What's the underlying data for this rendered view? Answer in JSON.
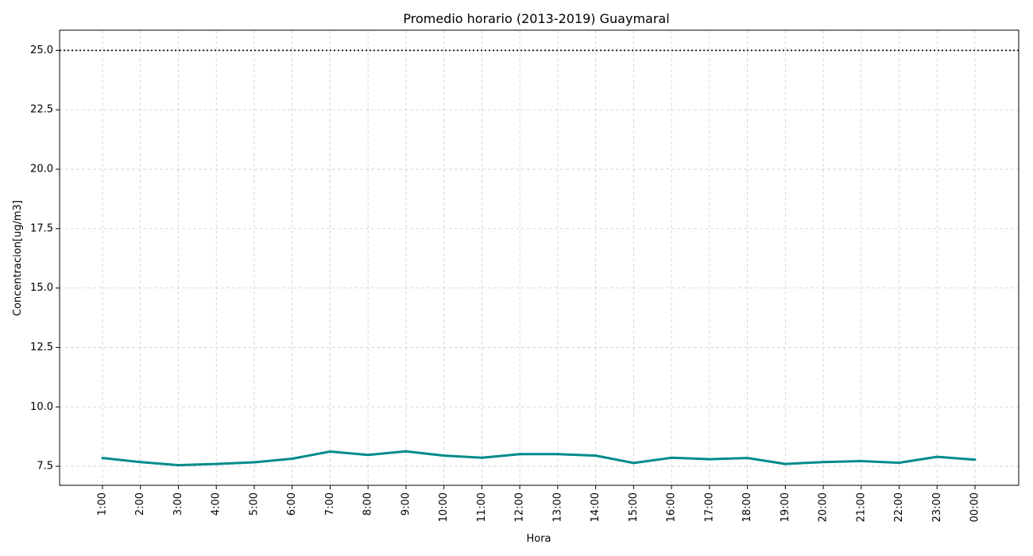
{
  "chart_data": {
    "type": "line",
    "title": "Promedio horario (2013-2019) Guaymaral",
    "xlabel": "Hora",
    "ylabel": "Concentracion[ug/m3]",
    "categories": [
      "1:00",
      "2:00",
      "3:00",
      "4:00",
      "5:00",
      "6:00",
      "7:00",
      "8:00",
      "9:00",
      "10:00",
      "11:00",
      "12:00",
      "13:00",
      "14:00",
      "15:00",
      "16:00",
      "17:00",
      "18:00",
      "19:00",
      "20:00",
      "21:00",
      "22:00",
      "23:00",
      "00:00"
    ],
    "series": [
      {
        "color": "#008b8b",
        "values": [
          7.85,
          7.68,
          7.55,
          7.6,
          7.67,
          7.82,
          8.12,
          7.98,
          8.13,
          7.95,
          7.86,
          8.01,
          8.01,
          7.95,
          7.64,
          7.86,
          7.8,
          7.85,
          7.6,
          7.68,
          7.72,
          7.65,
          7.9,
          7.78
        ]
      }
    ],
    "reference_line": {
      "y": 25.0,
      "style": "dotted",
      "color": "#000000"
    },
    "ylim": [
      6.7,
      25.85
    ],
    "yticks": [
      7.5,
      10.0,
      12.5,
      15.0,
      17.5,
      20.0,
      22.5,
      25.0
    ],
    "grid": true
  }
}
